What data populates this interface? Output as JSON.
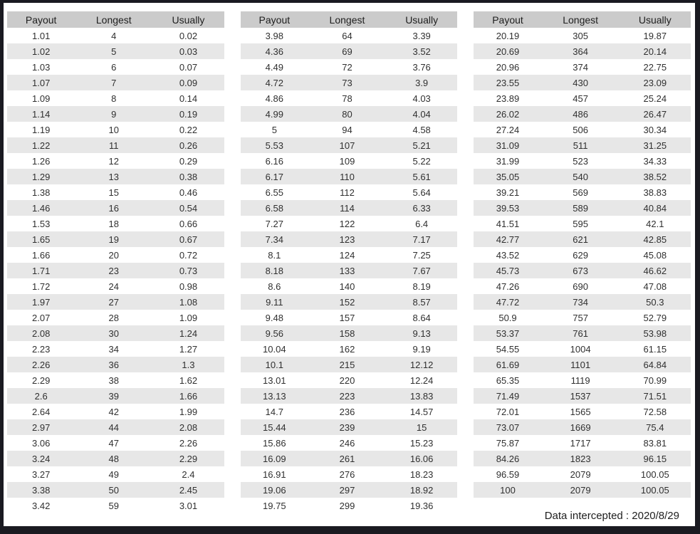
{
  "columns": [
    "Payout",
    "Longest",
    "Usually"
  ],
  "tables": [
    {
      "rows": [
        [
          "1.01",
          "4",
          "0.02"
        ],
        [
          "1.02",
          "5",
          "0.03"
        ],
        [
          "1.03",
          "6",
          "0.07"
        ],
        [
          "1.07",
          "7",
          "0.09"
        ],
        [
          "1.09",
          "8",
          "0.14"
        ],
        [
          "1.14",
          "9",
          "0.19"
        ],
        [
          "1.19",
          "10",
          "0.22"
        ],
        [
          "1.22",
          "11",
          "0.26"
        ],
        [
          "1.26",
          "12",
          "0.29"
        ],
        [
          "1.29",
          "13",
          "0.38"
        ],
        [
          "1.38",
          "15",
          "0.46"
        ],
        [
          "1.46",
          "16",
          "0.54"
        ],
        [
          "1.53",
          "18",
          "0.66"
        ],
        [
          "1.65",
          "19",
          "0.67"
        ],
        [
          "1.66",
          "20",
          "0.72"
        ],
        [
          "1.71",
          "23",
          "0.73"
        ],
        [
          "1.72",
          "24",
          "0.98"
        ],
        [
          "1.97",
          "27",
          "1.08"
        ],
        [
          "2.07",
          "28",
          "1.09"
        ],
        [
          "2.08",
          "30",
          "1.24"
        ],
        [
          "2.23",
          "34",
          "1.27"
        ],
        [
          "2.26",
          "36",
          "1.3"
        ],
        [
          "2.29",
          "38",
          "1.62"
        ],
        [
          "2.6",
          "39",
          "1.66"
        ],
        [
          "2.64",
          "42",
          "1.99"
        ],
        [
          "2.97",
          "44",
          "2.08"
        ],
        [
          "3.06",
          "47",
          "2.26"
        ],
        [
          "3.24",
          "48",
          "2.29"
        ],
        [
          "3.27",
          "49",
          "2.4"
        ],
        [
          "3.38",
          "50",
          "2.45"
        ],
        [
          "3.42",
          "59",
          "3.01"
        ]
      ]
    },
    {
      "rows": [
        [
          "3.98",
          "64",
          "3.39"
        ],
        [
          "4.36",
          "69",
          "3.52"
        ],
        [
          "4.49",
          "72",
          "3.76"
        ],
        [
          "4.72",
          "73",
          "3.9"
        ],
        [
          "4.86",
          "78",
          "4.03"
        ],
        [
          "4.99",
          "80",
          "4.04"
        ],
        [
          "5",
          "94",
          "4.58"
        ],
        [
          "5.53",
          "107",
          "5.21"
        ],
        [
          "6.16",
          "109",
          "5.22"
        ],
        [
          "6.17",
          "110",
          "5.61"
        ],
        [
          "6.55",
          "112",
          "5.64"
        ],
        [
          "6.58",
          "114",
          "6.33"
        ],
        [
          "7.27",
          "122",
          "6.4"
        ],
        [
          "7.34",
          "123",
          "7.17"
        ],
        [
          "8.1",
          "124",
          "7.25"
        ],
        [
          "8.18",
          "133",
          "7.67"
        ],
        [
          "8.6",
          "140",
          "8.19"
        ],
        [
          "9.11",
          "152",
          "8.57"
        ],
        [
          "9.48",
          "157",
          "8.64"
        ],
        [
          "9.56",
          "158",
          "9.13"
        ],
        [
          "10.04",
          "162",
          "9.19"
        ],
        [
          "10.1",
          "215",
          "12.12"
        ],
        [
          "13.01",
          "220",
          "12.24"
        ],
        [
          "13.13",
          "223",
          "13.83"
        ],
        [
          "14.7",
          "236",
          "14.57"
        ],
        [
          "15.44",
          "239",
          "15"
        ],
        [
          "15.86",
          "246",
          "15.23"
        ],
        [
          "16.09",
          "261",
          "16.06"
        ],
        [
          "16.91",
          "276",
          "18.23"
        ],
        [
          "19.06",
          "297",
          "18.92"
        ],
        [
          "19.75",
          "299",
          "19.36"
        ]
      ]
    },
    {
      "rows": [
        [
          "20.19",
          "305",
          "19.87"
        ],
        [
          "20.69",
          "364",
          "20.14"
        ],
        [
          "20.96",
          "374",
          "22.75"
        ],
        [
          "23.55",
          "430",
          "23.09"
        ],
        [
          "23.89",
          "457",
          "25.24"
        ],
        [
          "26.02",
          "486",
          "26.47"
        ],
        [
          "27.24",
          "506",
          "30.34"
        ],
        [
          "31.09",
          "511",
          "31.25"
        ],
        [
          "31.99",
          "523",
          "34.33"
        ],
        [
          "35.05",
          "540",
          "38.52"
        ],
        [
          "39.21",
          "569",
          "38.83"
        ],
        [
          "39.53",
          "589",
          "40.84"
        ],
        [
          "41.51",
          "595",
          "42.1"
        ],
        [
          "42.77",
          "621",
          "42.85"
        ],
        [
          "43.52",
          "629",
          "45.08"
        ],
        [
          "45.73",
          "673",
          "46.62"
        ],
        [
          "47.26",
          "690",
          "47.08"
        ],
        [
          "47.72",
          "734",
          "50.3"
        ],
        [
          "50.9",
          "757",
          "52.79"
        ],
        [
          "53.37",
          "761",
          "53.98"
        ],
        [
          "54.55",
          "1004",
          "61.15"
        ],
        [
          "61.69",
          "1101",
          "64.84"
        ],
        [
          "65.35",
          "1119",
          "70.99"
        ],
        [
          "71.49",
          "1537",
          "71.51"
        ],
        [
          "72.01",
          "1565",
          "72.58"
        ],
        [
          "73.07",
          "1669",
          "75.4"
        ],
        [
          "75.87",
          "1717",
          "83.81"
        ],
        [
          "84.26",
          "1823",
          "96.15"
        ],
        [
          "96.59",
          "2079",
          "100.05"
        ],
        [
          "100",
          "2079",
          "100.05"
        ]
      ]
    }
  ],
  "footer": {
    "note": "Data intercepted : 2020/8/29"
  },
  "colors": {
    "frame": "#1a1a21",
    "header_bg": "#cbcbcb",
    "stripe_bg": "#e7e7e7",
    "text": "#303030"
  }
}
